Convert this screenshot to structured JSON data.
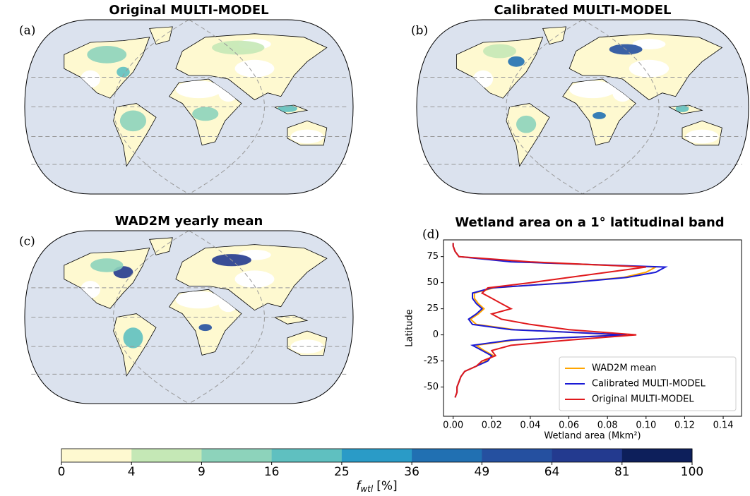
{
  "chart_data": [
    {
      "type": "map",
      "panel": "(a)",
      "title": "Original MULTI-MODEL"
    },
    {
      "type": "map",
      "panel": "(b)",
      "title": "Calibrated MULTI-MODEL"
    },
    {
      "type": "map",
      "panel": "(c)",
      "title": "WAD2M yearly mean"
    },
    {
      "type": "line",
      "panel": "(d)",
      "title": "Wetland area on a 1° latitudinal band",
      "xlabel": "Wetland area (Mkm²)",
      "ylabel": "Latitude",
      "y": [
        -60,
        -55,
        -50,
        -45,
        -40,
        -35,
        -30,
        -25,
        -20,
        -15,
        -10,
        -5,
        0,
        5,
        10,
        15,
        20,
        25,
        30,
        35,
        40,
        45,
        50,
        55,
        60,
        65,
        70,
        75,
        80,
        85,
        88
      ],
      "series": [
        {
          "name": "WAD2M mean",
          "color": "#ffa500",
          "values": [
            0.001,
            0.002,
            0.002,
            0.003,
            0.004,
            0.006,
            0.012,
            0.017,
            0.021,
            0.016,
            0.012,
            0.032,
            0.088,
            0.032,
            0.012,
            0.009,
            0.013,
            0.016,
            0.013,
            0.011,
            0.011,
            0.021,
            0.058,
            0.088,
            0.1,
            0.105,
            0.032,
            0.003,
            0.001,
            0,
            0
          ]
        },
        {
          "name": "Calibrated MULTI-MODEL",
          "color": "#1a1ad6",
          "values": [
            0.001,
            0.002,
            0.002,
            0.003,
            0.004,
            0.006,
            0.012,
            0.018,
            0.02,
            0.015,
            0.01,
            0.03,
            0.09,
            0.03,
            0.01,
            0.008,
            0.012,
            0.015,
            0.012,
            0.01,
            0.01,
            0.02,
            0.06,
            0.09,
            0.105,
            0.11,
            0.03,
            0.003,
            0.001,
            0,
            0
          ]
        },
        {
          "name": "Original MULTI-MODEL",
          "color": "#e0191c",
          "values": [
            0.001,
            0.002,
            0.002,
            0.003,
            0.004,
            0.006,
            0.012,
            0.015,
            0.022,
            0.02,
            0.03,
            0.06,
            0.095,
            0.06,
            0.04,
            0.025,
            0.02,
            0.03,
            0.025,
            0.02,
            0.015,
            0.018,
            0.04,
            0.06,
            0.08,
            0.1,
            0.04,
            0.003,
            0.001,
            0,
            0
          ]
        }
      ],
      "xlim": [
        -0.005,
        0.1495
      ],
      "ylim": [
        -78,
        91
      ],
      "xticks": [
        {
          "value": 0,
          "label": "0.00"
        },
        {
          "value": 0.02,
          "label": "0.02"
        },
        {
          "value": 0.04,
          "label": "0.04"
        },
        {
          "value": 0.06,
          "label": "0.06"
        },
        {
          "value": 0.08,
          "label": "0.08"
        },
        {
          "value": 0.1,
          "label": "0.10"
        },
        {
          "value": 0.12,
          "label": "0.12"
        },
        {
          "value": 0.14,
          "label": "0.14"
        }
      ],
      "yticks": [
        -50,
        -25,
        0,
        25,
        50,
        75
      ],
      "legend": "lower right"
    },
    {
      "type": "colorbar",
      "label_symbol": "f",
      "label_subscript": "wtl",
      "label_unit": "[%]",
      "ticks": [
        0,
        4,
        9,
        16,
        25,
        36,
        49,
        64,
        81,
        100
      ],
      "colors": [
        "#fef9d0",
        "#c5e8b6",
        "#8dd3bb",
        "#5fc0c0",
        "#2a9bc7",
        "#2170b2",
        "#2550a0",
        "#233a8f",
        "#0d1f5b"
      ]
    }
  ]
}
